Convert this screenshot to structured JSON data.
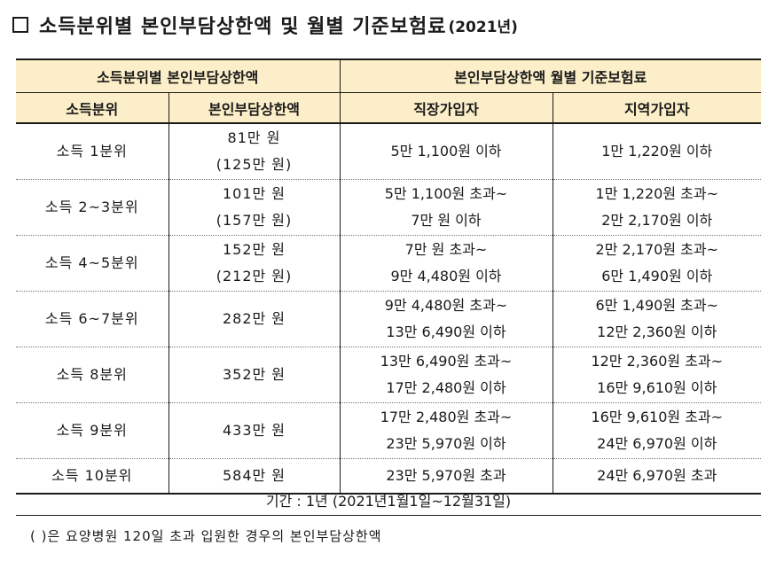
{
  "title": {
    "main": "소득분위별 본인부담상한액 및 월별 기준보험료",
    "year": "(2021년)"
  },
  "header": {
    "group1": "소득분위별 본인부담상한액",
    "group2": "본인부담상한액 월별 기준보험료",
    "col1": "소득분위",
    "col2": "본인부담상한액",
    "col3": "직장가입자",
    "col4": "지역가입자"
  },
  "rows": [
    {
      "income": "소득 1분위",
      "limit1": "81만 원",
      "limit2": "(125만 원)",
      "emp1": "5만 1,100원 이하",
      "emp2": "",
      "reg1": "1만 1,220원 이하",
      "reg2": ""
    },
    {
      "income": "소득 2~3분위",
      "limit1": "101만 원",
      "limit2": "(157만 원)",
      "emp1": "5만 1,100원 초과~",
      "emp2": "7만 원 이하",
      "reg1": "1만 1,220원 초과~",
      "reg2": "2만 2,170원 이하"
    },
    {
      "income": "소득 4~5분위",
      "limit1": "152만 원",
      "limit2": "(212만 원)",
      "emp1": "7만 원 초과~",
      "emp2": "9만 4,480원 이하",
      "reg1": "2만 2,170원 초과~",
      "reg2": "6만 1,490원 이하"
    },
    {
      "income": "소득 6~7분위",
      "limit1": "282만 원",
      "limit2": "",
      "emp1": "9만 4,480원 초과~",
      "emp2": "13만 6,490원 이하",
      "reg1": "6만 1,490원 초과~",
      "reg2": "12만 2,360원 이하"
    },
    {
      "income": "소득 8분위",
      "limit1": "352만 원",
      "limit2": "",
      "emp1": "13만 6,490원 초과~",
      "emp2": "17만 2,480원 이하",
      "reg1": "12만 2,360원 초과~",
      "reg2": "16만 9,610원 이하"
    },
    {
      "income": "소득 9분위",
      "limit1": "433만 원",
      "limit2": "",
      "emp1": "17만 2,480원 초과~",
      "emp2": "23만 5,970원 이하",
      "reg1": "16만 9,610원 초과~",
      "reg2": "24만 6,970원 이하"
    },
    {
      "income": "소득 10분위",
      "limit1": "584만 원",
      "limit2": "",
      "emp1": "23만 5,970원 초과",
      "emp2": "",
      "reg1": "24만 6,970원 초과",
      "reg2": ""
    }
  ],
  "period": "기간 : 1년 (2021년1월1일~12월31일)",
  "footnote": "(   )은 요양병원 120일 초과 입원한 경우의 본인부담상한액"
}
